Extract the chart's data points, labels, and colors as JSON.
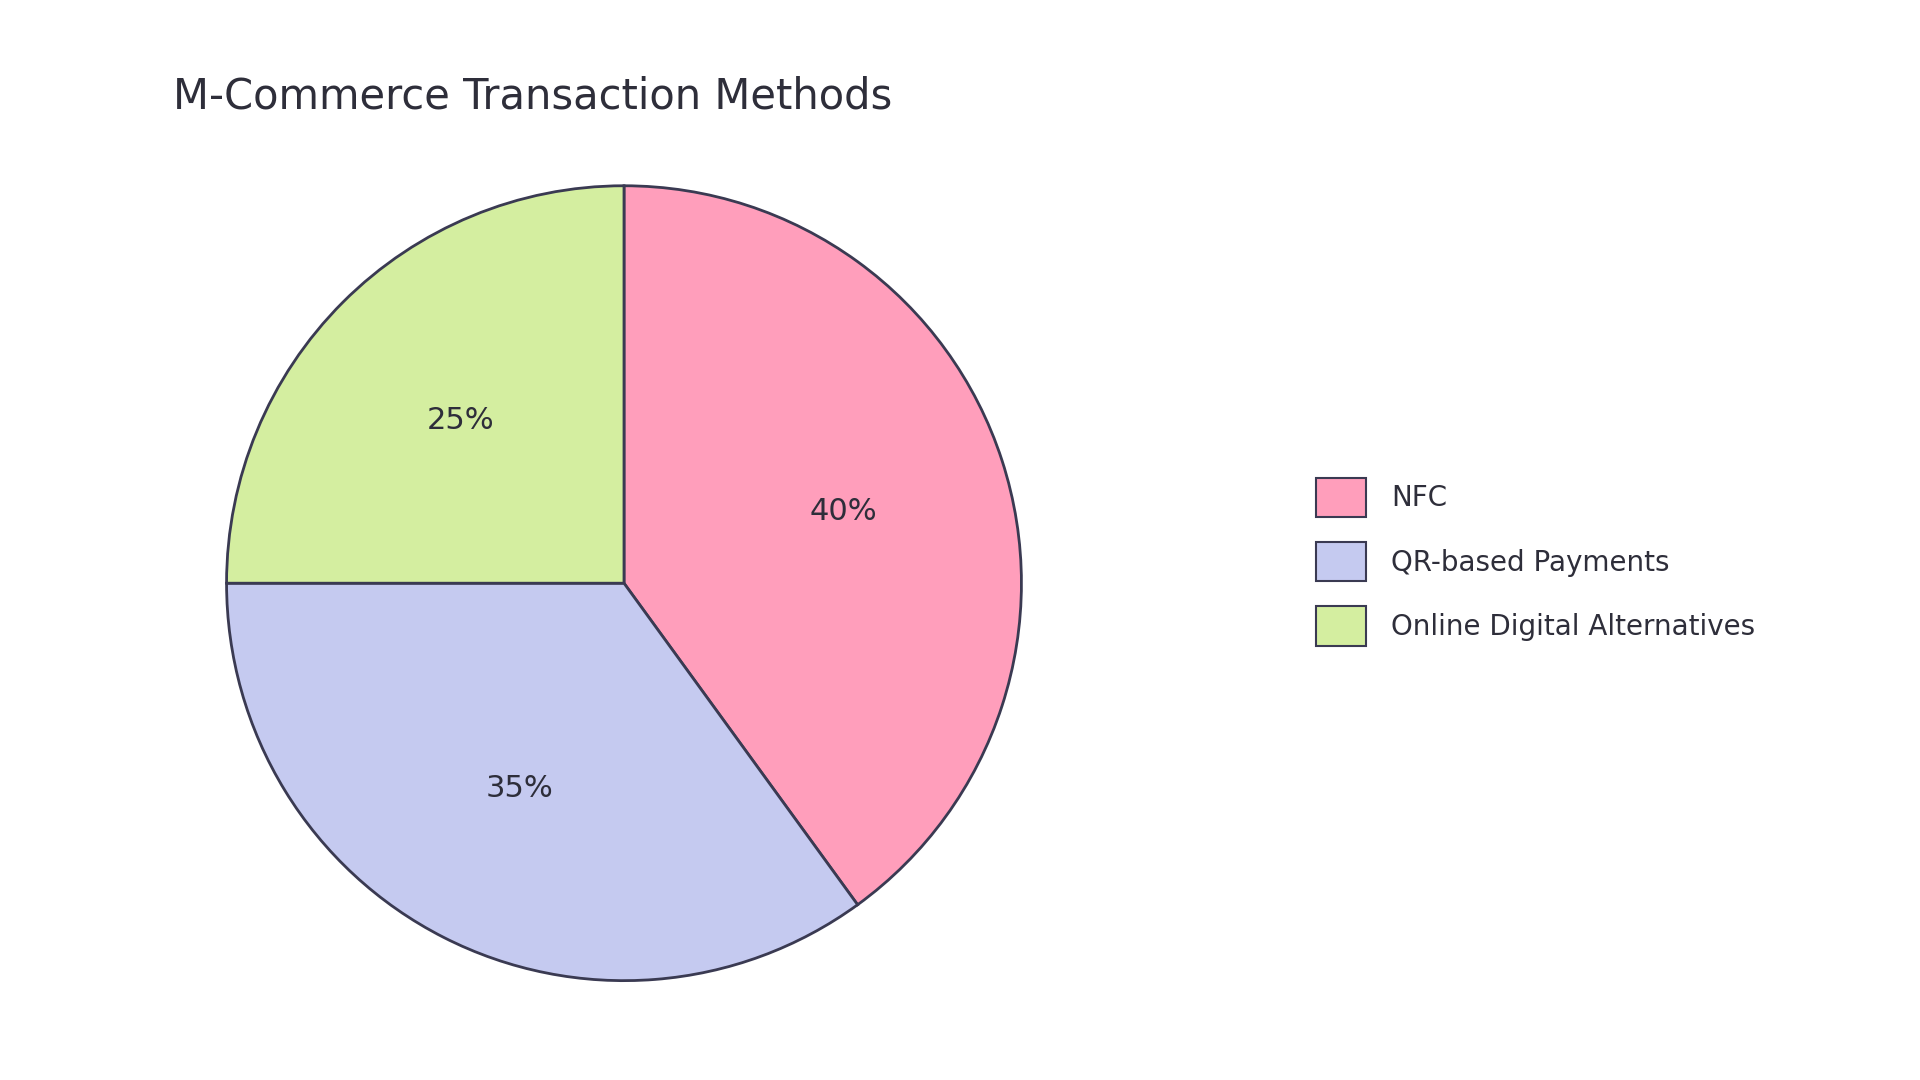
{
  "title": "M-Commerce Transaction Methods",
  "labels": [
    "NFC",
    "QR-based Payments",
    "Online Digital Alternatives"
  ],
  "values": [
    40,
    35,
    25
  ],
  "colors": [
    "#FF9EBB",
    "#C5CAF0",
    "#D4EEA0"
  ],
  "edge_color": "#3a3a52",
  "text_color": "#2e2e3a",
  "pct_labels": [
    "40%",
    "35%",
    "25%"
  ],
  "startangle": 90,
  "title_fontsize": 30,
  "pct_fontsize": 22,
  "legend_fontsize": 20,
  "background_color": "#ffffff"
}
